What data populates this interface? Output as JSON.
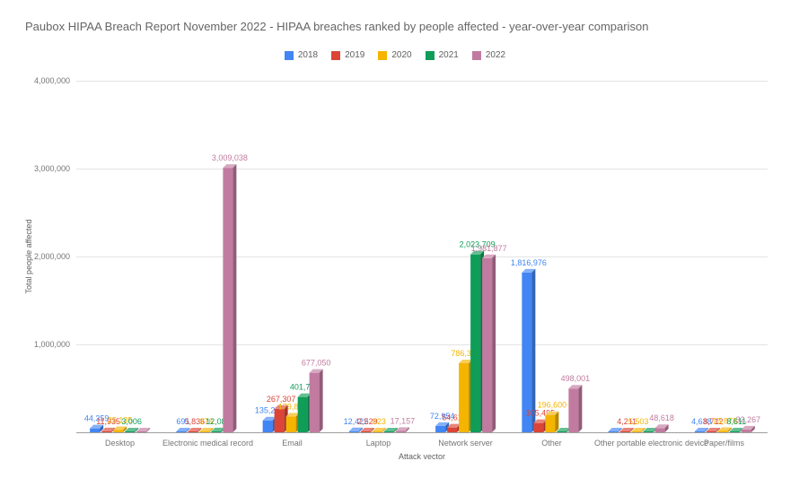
{
  "title": "Paubox HIPAA Breach Report November 2022 - HIPAA breaches ranked by people affected - year-over-year comparison",
  "legend": {
    "position": "top",
    "items": [
      {
        "label": "2018",
        "color": "#4285F4"
      },
      {
        "label": "2019",
        "color": "#DB4437"
      },
      {
        "label": "2020",
        "color": "#F4B400"
      },
      {
        "label": "2021",
        "color": "#0F9D58"
      },
      {
        "label": "2022",
        "color": "#C27BA0"
      }
    ]
  },
  "axes": {
    "y_title": "Total people affected",
    "x_title": "Attack vector",
    "y_ticks": [
      "4,000,000",
      "3,000,000",
      "2,000,000",
      "1,000,000"
    ],
    "y_max": 4000000,
    "grid": true
  },
  "chart_data": {
    "type": "bar",
    "title": "Paubox HIPAA Breach Report November 2022 - HIPAA breaches ranked by people affected - year-over-year comparison",
    "xlabel": "Attack vector",
    "ylabel": "Total people affected",
    "ylim": [
      0,
      4000000
    ],
    "grid": true,
    "legend_position": "top",
    "categories": [
      "Desktop",
      "Electronic medical record",
      "Email",
      "Laptop",
      "Network server",
      "Other",
      "Other portable electronic device",
      "Paper/films"
    ],
    "series": [
      {
        "name": "2018",
        "color": "#4285F4",
        "values": [
          44359,
          691,
          135279,
          12422,
          72954,
          1816976,
          3000,
          4638
        ],
        "labels": [
          "44,359",
          "691",
          "135,279",
          "12,422",
          "72,954",
          "1,816,976",
          "",
          "4,638"
        ]
      },
      {
        "name": "2019",
        "color": "#DB4437",
        "values": [
          11935,
          5836,
          267307,
          2529,
          54611,
          105495,
          4211,
          8712
        ],
        "labels": [
          "11,935",
          "5,836",
          "267,307",
          "2,529",
          "54,611",
          "105,495",
          "4,211",
          "8,712"
        ]
      },
      {
        "name": "2020",
        "color": "#F4B400",
        "values": [
          25135,
          376,
          179883,
          823,
          786328,
          196600,
          5503,
          15878
        ],
        "labels": [
          "25,135",
          "376",
          "179,883",
          "823",
          "786,328",
          "196,600",
          "5,503",
          "15,878"
        ]
      },
      {
        "name": "2021",
        "color": "#0F9D58",
        "values": [
          3006,
          12082,
          401728,
          3500,
          2023709,
          8000,
          6000,
          8611
        ],
        "labels": [
          "3,006",
          "12,082",
          "401,728",
          "",
          "2,023,709",
          "",
          "",
          "8,611"
        ]
      },
      {
        "name": "2022",
        "color": "#C27BA0",
        "values": [
          4000,
          3009038,
          677050,
          17157,
          1981877,
          498001,
          48618,
          32267
        ],
        "labels": [
          "",
          "3,009,038",
          "677,050",
          "17,157",
          "1,981,877",
          "498,001",
          "48,618",
          "32,267"
        ]
      }
    ]
  }
}
